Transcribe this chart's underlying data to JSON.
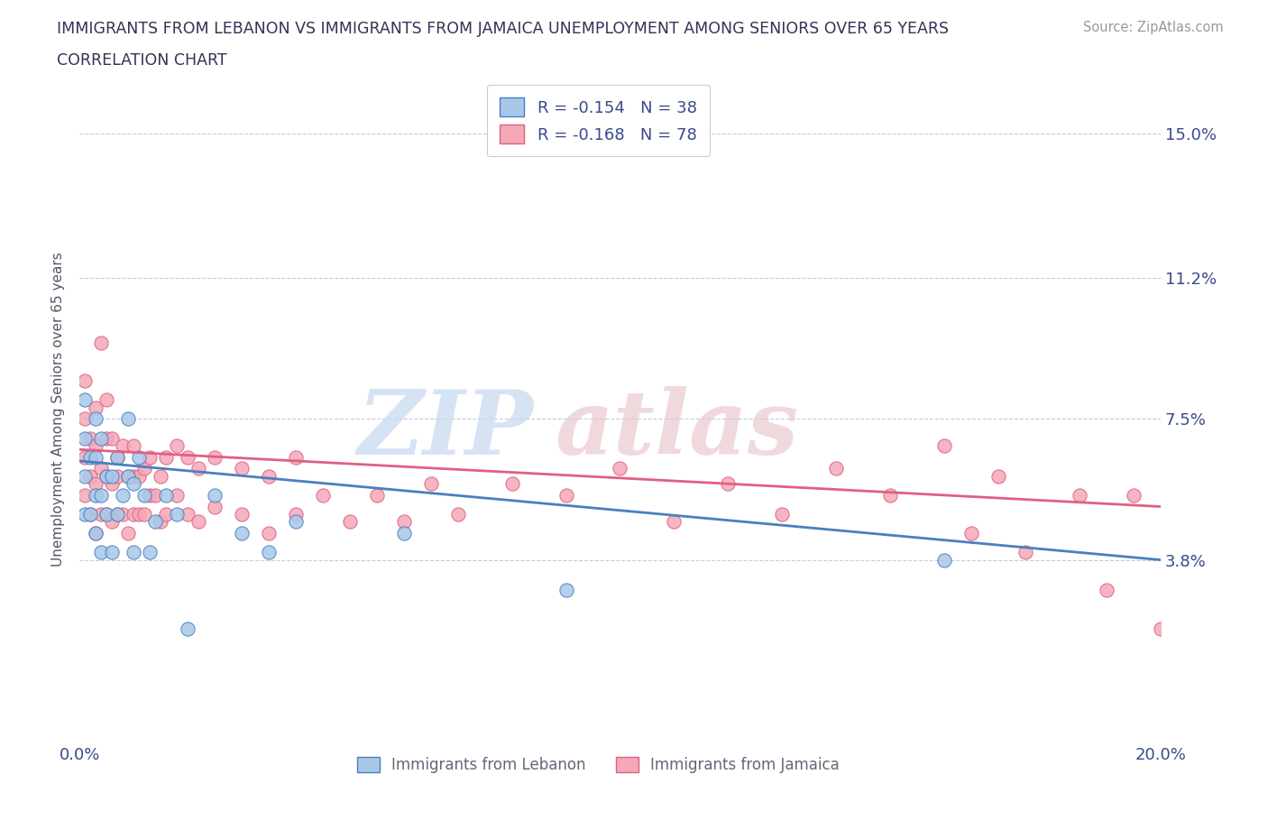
{
  "title_line1": "IMMIGRANTS FROM LEBANON VS IMMIGRANTS FROM JAMAICA UNEMPLOYMENT AMONG SENIORS OVER 65 YEARS",
  "title_line2": "CORRELATION CHART",
  "source": "Source: ZipAtlas.com",
  "ylabel": "Unemployment Among Seniors over 65 years",
  "xlim": [
    0.0,
    0.2
  ],
  "ylim": [
    -0.01,
    0.165
  ],
  "yticks": [
    0.038,
    0.075,
    0.112,
    0.15
  ],
  "ytick_labels": [
    "3.8%",
    "7.5%",
    "11.2%",
    "15.0%"
  ],
  "xticks": [
    0.0,
    0.05,
    0.1,
    0.15,
    0.2
  ],
  "xtick_labels": [
    "0.0%",
    "",
    "",
    "",
    "20.0%"
  ],
  "legend_r1": "R = -0.154   N = 38",
  "legend_r2": "R = -0.168   N = 78",
  "color_lebanon": "#a8c8e8",
  "color_jamaica": "#f4a8b8",
  "line_color_lebanon": "#4a7fc0",
  "line_color_jamaica": "#e06080",
  "text_color": "#3a4a8a",
  "background_color": "#ffffff",
  "leb_trend_x": [
    0.0,
    0.2
  ],
  "leb_trend_y": [
    0.064,
    0.038
  ],
  "jam_trend_x": [
    0.0,
    0.2
  ],
  "jam_trend_y": [
    0.067,
    0.052
  ],
  "lebanon_x": [
    0.001,
    0.001,
    0.001,
    0.001,
    0.002,
    0.002,
    0.003,
    0.003,
    0.003,
    0.003,
    0.004,
    0.004,
    0.004,
    0.005,
    0.005,
    0.006,
    0.006,
    0.007,
    0.007,
    0.008,
    0.009,
    0.009,
    0.01,
    0.01,
    0.011,
    0.012,
    0.013,
    0.014,
    0.016,
    0.018,
    0.02,
    0.025,
    0.03,
    0.035,
    0.04,
    0.06,
    0.09,
    0.16
  ],
  "lebanon_y": [
    0.05,
    0.06,
    0.07,
    0.08,
    0.05,
    0.065,
    0.045,
    0.055,
    0.065,
    0.075,
    0.04,
    0.055,
    0.07,
    0.05,
    0.06,
    0.04,
    0.06,
    0.05,
    0.065,
    0.055,
    0.06,
    0.075,
    0.04,
    0.058,
    0.065,
    0.055,
    0.04,
    0.048,
    0.055,
    0.05,
    0.02,
    0.055,
    0.045,
    0.04,
    0.048,
    0.045,
    0.03,
    0.038
  ],
  "jamaica_x": [
    0.001,
    0.001,
    0.001,
    0.001,
    0.002,
    0.002,
    0.002,
    0.003,
    0.003,
    0.003,
    0.003,
    0.004,
    0.004,
    0.004,
    0.005,
    0.005,
    0.005,
    0.005,
    0.006,
    0.006,
    0.006,
    0.007,
    0.007,
    0.007,
    0.008,
    0.008,
    0.009,
    0.009,
    0.01,
    0.01,
    0.01,
    0.011,
    0.011,
    0.012,
    0.012,
    0.013,
    0.013,
    0.014,
    0.015,
    0.015,
    0.016,
    0.016,
    0.018,
    0.018,
    0.02,
    0.02,
    0.022,
    0.022,
    0.025,
    0.025,
    0.03,
    0.03,
    0.035,
    0.035,
    0.04,
    0.04,
    0.045,
    0.05,
    0.055,
    0.06,
    0.065,
    0.07,
    0.08,
    0.09,
    0.1,
    0.11,
    0.12,
    0.13,
    0.14,
    0.15,
    0.16,
    0.165,
    0.17,
    0.175,
    0.185,
    0.19,
    0.195,
    0.2
  ],
  "jamaica_y": [
    0.055,
    0.065,
    0.075,
    0.085,
    0.05,
    0.06,
    0.07,
    0.045,
    0.058,
    0.068,
    0.078,
    0.05,
    0.062,
    0.095,
    0.05,
    0.06,
    0.07,
    0.08,
    0.048,
    0.058,
    0.07,
    0.05,
    0.06,
    0.065,
    0.05,
    0.068,
    0.045,
    0.06,
    0.05,
    0.06,
    0.068,
    0.05,
    0.06,
    0.05,
    0.062,
    0.055,
    0.065,
    0.055,
    0.048,
    0.06,
    0.05,
    0.065,
    0.055,
    0.068,
    0.05,
    0.065,
    0.048,
    0.062,
    0.052,
    0.065,
    0.05,
    0.062,
    0.045,
    0.06,
    0.05,
    0.065,
    0.055,
    0.048,
    0.055,
    0.048,
    0.058,
    0.05,
    0.058,
    0.055,
    0.062,
    0.048,
    0.058,
    0.05,
    0.062,
    0.055,
    0.068,
    0.045,
    0.06,
    0.04,
    0.055,
    0.03,
    0.055,
    0.02
  ]
}
